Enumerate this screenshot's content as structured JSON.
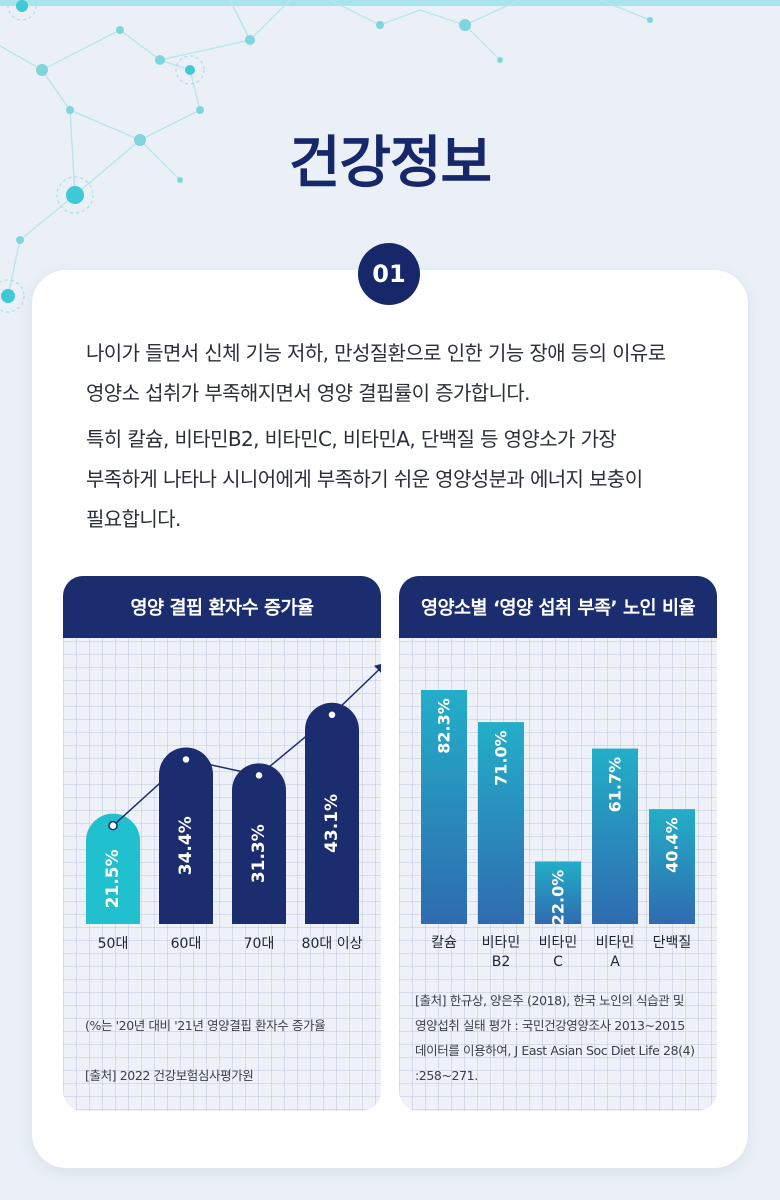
{
  "page_title": "건강정보",
  "badge": "01",
  "paragraphs": [
    "나이가 들면서 신체 기능 저하, 만성질환으로 인한 기능 장애 등의 이유로\n영양소 섭취가 부족해지면서 영양 결핍률이 증가합니다.",
    "특히 칼슘, 비타민B2, 비타민C, 비타민A, 단백질 등 영양소가 가장\n부족하게 나타나 시니어에게 부족하기 쉬운 영양성분과 에너지 보충이\n필요합니다."
  ],
  "colors": {
    "navy": "#1b2d6e",
    "teal": "#21c0cf",
    "bar_gradient_top": "#23aec8",
    "bar_gradient_bottom": "#2f6bb0"
  },
  "chart_data": [
    {
      "type": "bar",
      "title": "영양 결핍 환자수 증가율",
      "categories": [
        "50대",
        "60대",
        "70대",
        "80대 이상"
      ],
      "values": [
        21.5,
        34.4,
        31.3,
        43.1
      ],
      "labels": [
        "21.5%",
        "34.4%",
        "31.3%",
        "43.1%"
      ],
      "bar_colors": [
        "#21c0cf",
        "#1b2d6e",
        "#1b2d6e",
        "#1b2d6e"
      ],
      "trend_line": true,
      "trend_arrow": true,
      "ylim": [
        0,
        50
      ],
      "grid": true,
      "notes": [
        "(%는 '20년 대비 '21년 영양결핍 환자수 증가율",
        "[출처] 2022 건강보험심사평가원"
      ]
    },
    {
      "type": "bar",
      "title": "영양소별 ‘영양 섭취 부족’ 노인 비율",
      "categories": [
        [
          "칼슘"
        ],
        [
          "비타민",
          "B2"
        ],
        [
          "비타민",
          "C"
        ],
        [
          "비타민",
          "A"
        ],
        [
          "단백질"
        ]
      ],
      "values": [
        82.3,
        71.0,
        22.0,
        61.7,
        40.4
      ],
      "labels": [
        "82.3%",
        "71.0%",
        "22.0%",
        "61.7%",
        "40.4%"
      ],
      "ylim": [
        0,
        90
      ],
      "grid": true,
      "notes": "[출처] 한규상, 양은주 (2018), 한국 노인의 식습관 및\n영양섭취 실태 평가 : 국민건강영양조사 2013~2015\n데이터를 이용하여, J East Asian Soc Diet Life 28(4)\n:258~271."
    }
  ]
}
